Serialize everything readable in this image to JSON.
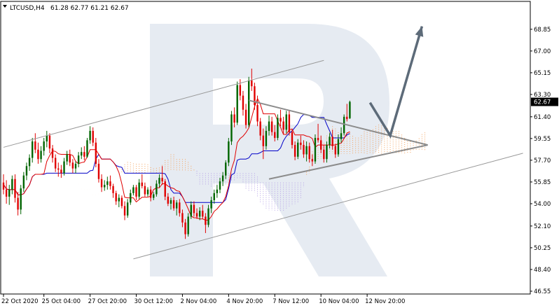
{
  "header": {
    "symbol": "LTCUSD,H4",
    "ohlc": "61.28 62.77 61.21 62.67",
    "menu_icon": "triangle-down-icon"
  },
  "watermark": {
    "logo": "RoboForex R logo",
    "color": "#dde4ee"
  },
  "colors": {
    "bull": "#006400",
    "bear": "#e00000",
    "tenkan": "#e00000",
    "kijun": "#0000c8",
    "kumo_a": "#f4a460",
    "kumo_b": "#b4a0e6",
    "trendline": "#999999",
    "triangle": "#8c8c8c",
    "arrow": "#5d6b79",
    "price_box": "#000000"
  },
  "chart_data": {
    "type": "candlestick",
    "title": "LTCUSD,H4",
    "last_price": "62.67",
    "ylim": [
      46.55,
      70.15
    ],
    "y_ticks": [
      "68.85",
      "67.00",
      "65.15",
      "63.30",
      "61.40",
      "59.55",
      "57.70",
      "55.85",
      "54.00",
      "52.10",
      "50.25",
      "48.40",
      "46.55"
    ],
    "x_ticks": [
      "22 Oct 2020",
      "25 Oct 04:00",
      "27 Oct 20:00",
      "30 Oct 12:00",
      "2 Nov 04:00",
      "4 Nov 20:00",
      "7 Nov 12:00",
      "10 Nov 04:00",
      "12 Nov 20:00"
    ],
    "x_tick_bar": [
      0,
      14,
      30,
      46,
      62,
      78,
      94,
      110,
      126
    ],
    "candles": [
      [
        55.8,
        56.5,
        54.8,
        55.2
      ],
      [
        55.2,
        56.0,
        54.0,
        54.6
      ],
      [
        54.6,
        55.6,
        53.9,
        55.2
      ],
      [
        55.2,
        56.4,
        54.8,
        56.1
      ],
      [
        56.1,
        56.5,
        54.1,
        54.5
      ],
      [
        54.5,
        55.0,
        53.0,
        53.5
      ],
      [
        53.5,
        55.6,
        53.1,
        55.3
      ],
      [
        55.3,
        56.7,
        55.0,
        56.4
      ],
      [
        56.4,
        57.5,
        56.0,
        57.2
      ],
      [
        57.2,
        58.2,
        56.8,
        57.9
      ],
      [
        57.9,
        59.6,
        57.5,
        59.3
      ],
      [
        59.3,
        60.0,
        58.3,
        58.6
      ],
      [
        58.6,
        59.2,
        57.4,
        57.8
      ],
      [
        57.8,
        58.9,
        57.5,
        58.5
      ],
      [
        58.5,
        59.6,
        58.1,
        59.3
      ],
      [
        59.3,
        60.2,
        58.8,
        59.8
      ],
      [
        59.8,
        60.0,
        58.3,
        58.7
      ],
      [
        58.7,
        59.0,
        57.5,
        57.9
      ],
      [
        57.9,
        58.2,
        56.7,
        57.0
      ],
      [
        57.0,
        57.5,
        56.3,
        56.9
      ],
      [
        56.9,
        57.3,
        56.2,
        56.6
      ],
      [
        56.6,
        57.9,
        56.4,
        57.6
      ],
      [
        57.6,
        58.5,
        57.3,
        58.2
      ],
      [
        58.2,
        58.6,
        57.2,
        57.5
      ],
      [
        57.5,
        57.8,
        56.6,
        57.0
      ],
      [
        57.0,
        57.6,
        56.6,
        57.4
      ],
      [
        57.4,
        58.4,
        57.1,
        58.1
      ],
      [
        58.1,
        58.8,
        57.8,
        58.4
      ],
      [
        58.4,
        58.9,
        57.7,
        58.0
      ],
      [
        58.0,
        59.6,
        57.9,
        59.4
      ],
      [
        59.4,
        60.6,
        59.1,
        60.2
      ],
      [
        60.2,
        60.5,
        58.9,
        59.2
      ],
      [
        59.2,
        59.6,
        57.1,
        57.4
      ],
      [
        57.4,
        57.8,
        55.8,
        56.1
      ],
      [
        56.1,
        56.5,
        55.0,
        55.4
      ],
      [
        55.4,
        56.0,
        55.1,
        55.6
      ],
      [
        55.6,
        56.3,
        55.2,
        55.9
      ],
      [
        55.9,
        56.4,
        55.2,
        55.5
      ],
      [
        55.5,
        55.7,
        54.5,
        54.9
      ],
      [
        54.9,
        55.1,
        53.9,
        54.2
      ],
      [
        54.2,
        54.8,
        53.7,
        54.5
      ],
      [
        54.5,
        54.7,
        53.6,
        53.8
      ],
      [
        53.8,
        54.2,
        52.6,
        53.0
      ],
      [
        53.0,
        54.4,
        52.8,
        54.1
      ],
      [
        54.1,
        55.2,
        53.9,
        54.9
      ],
      [
        54.9,
        55.6,
        54.7,
        55.4
      ],
      [
        55.4,
        55.6,
        54.3,
        54.6
      ],
      [
        54.6,
        56.1,
        54.4,
        55.8
      ],
      [
        55.8,
        56.5,
        55.3,
        55.5
      ],
      [
        55.5,
        55.8,
        54.6,
        54.8
      ],
      [
        54.8,
        55.4,
        54.6,
        55.2
      ],
      [
        55.2,
        55.5,
        54.2,
        54.5
      ],
      [
        54.5,
        55.0,
        54.3,
        54.8
      ],
      [
        54.8,
        56.0,
        54.6,
        55.7
      ],
      [
        55.7,
        56.5,
        55.4,
        56.2
      ],
      [
        56.2,
        57.2,
        55.6,
        55.9
      ],
      [
        55.9,
        56.1,
        54.3,
        54.6
      ],
      [
        54.6,
        54.9,
        53.8,
        54.0
      ],
      [
        54.0,
        54.5,
        53.5,
        54.3
      ],
      [
        54.3,
        54.6,
        53.4,
        53.6
      ],
      [
        53.6,
        54.3,
        53.0,
        54.1
      ],
      [
        54.1,
        54.4,
        52.9,
        53.2
      ],
      [
        53.2,
        53.5,
        52.0,
        52.4
      ],
      [
        52.4,
        52.7,
        51.0,
        51.4
      ],
      [
        51.4,
        53.2,
        51.2,
        52.9
      ],
      [
        52.9,
        54.2,
        52.7,
        53.9
      ],
      [
        53.9,
        54.2,
        52.9,
        53.2
      ],
      [
        53.2,
        53.6,
        52.7,
        52.9
      ],
      [
        52.9,
        53.7,
        52.6,
        53.4
      ],
      [
        53.4,
        53.9,
        52.7,
        52.9
      ],
      [
        52.9,
        53.2,
        51.5,
        52.2
      ],
      [
        52.2,
        53.9,
        52.0,
        53.6
      ],
      [
        53.6,
        54.6,
        53.2,
        54.3
      ],
      [
        54.3,
        55.2,
        54.0,
        54.9
      ],
      [
        54.9,
        55.6,
        54.5,
        55.2
      ],
      [
        55.2,
        56.2,
        54.9,
        55.9
      ],
      [
        55.9,
        56.7,
        55.5,
        56.4
      ],
      [
        56.4,
        57.7,
        56.1,
        57.5
      ],
      [
        57.5,
        59.6,
        57.2,
        59.3
      ],
      [
        59.3,
        61.9,
        59.0,
        61.6
      ],
      [
        61.6,
        62.2,
        60.5,
        60.9
      ],
      [
        60.9,
        64.4,
        60.7,
        64.1
      ],
      [
        64.1,
        64.6,
        62.8,
        63.2
      ],
      [
        63.2,
        63.6,
        61.5,
        62.0
      ],
      [
        62.0,
        62.5,
        60.4,
        60.7
      ],
      [
        60.7,
        64.8,
        60.5,
        64.5
      ],
      [
        64.5,
        65.5,
        63.6,
        64.0
      ],
      [
        64.0,
        64.3,
        62.0,
        62.4
      ],
      [
        62.4,
        63.2,
        60.6,
        61.0
      ],
      [
        61.0,
        61.3,
        59.4,
        59.8
      ],
      [
        59.8,
        60.4,
        57.8,
        58.9
      ],
      [
        58.9,
        60.6,
        58.6,
        60.2
      ],
      [
        60.2,
        61.5,
        59.8,
        61.0
      ],
      [
        61.0,
        61.4,
        59.8,
        60.1
      ],
      [
        60.1,
        60.7,
        59.3,
        59.6
      ],
      [
        59.6,
        61.6,
        59.4,
        61.3
      ],
      [
        61.3,
        62.0,
        60.6,
        61.0
      ],
      [
        61.0,
        61.4,
        59.9,
        60.3
      ],
      [
        60.3,
        61.9,
        60.0,
        61.6
      ],
      [
        61.6,
        61.9,
        59.8,
        60.1
      ],
      [
        60.1,
        60.4,
        58.7,
        59.0
      ],
      [
        59.0,
        59.3,
        57.7,
        58.0
      ],
      [
        58.0,
        59.5,
        57.8,
        59.2
      ],
      [
        59.2,
        59.8,
        58.6,
        59.0
      ],
      [
        59.0,
        59.4,
        57.9,
        58.2
      ],
      [
        58.2,
        59.3,
        57.6,
        58.9
      ],
      [
        58.9,
        59.2,
        57.5,
        57.8
      ],
      [
        57.8,
        58.2,
        57.2,
        57.6
      ],
      [
        57.6,
        59.9,
        57.4,
        59.6
      ],
      [
        59.6,
        60.8,
        59.2,
        59.4
      ],
      [
        59.4,
        59.8,
        58.3,
        58.6
      ],
      [
        58.6,
        59.0,
        57.5,
        57.8
      ],
      [
        57.8,
        59.3,
        57.5,
        59.0
      ],
      [
        59.0,
        60.0,
        58.7,
        59.7
      ],
      [
        59.7,
        60.3,
        58.6,
        58.9
      ],
      [
        58.9,
        59.1,
        57.9,
        58.2
      ],
      [
        58.2,
        59.9,
        58.0,
        59.5
      ],
      [
        59.5,
        60.5,
        59.2,
        60.0
      ],
      [
        60.0,
        61.6,
        59.8,
        61.4
      ],
      [
        61.4,
        62.5,
        61.0,
        61.2
      ],
      [
        61.28,
        62.77,
        61.21,
        62.67
      ]
    ],
    "trendlines": [
      {
        "name": "channel-upper",
        "from": [
          0,
          58.8
        ],
        "to": [
          111,
          66.2
        ]
      },
      {
        "name": "channel-lower",
        "from": [
          45,
          49.3
        ],
        "to": [
          180,
          58.3
        ]
      },
      {
        "name": "triangle-upper",
        "from": [
          85,
          62.8
        ],
        "to": [
          147,
          59.0
        ]
      },
      {
        "name": "triangle-lower",
        "from": [
          92,
          56.1
        ],
        "to": [
          147,
          59.0
        ]
      }
    ],
    "forecast_arrow": {
      "points": [
        [
          127,
          62.6
        ],
        [
          134,
          59.8
        ],
        [
          145,
          69.1
        ]
      ]
    },
    "kumo_offset": 26
  }
}
